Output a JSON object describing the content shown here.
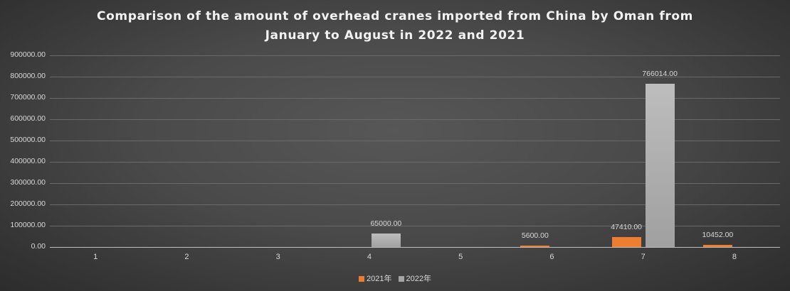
{
  "chart_data": {
    "type": "bar",
    "title": "Comparison of the amount of overhead cranes imported from China by Oman from January to August in 2022 and 2021",
    "title_lines": [
      "Comparison of the amount of overhead cranes imported from China by Oman from",
      "January to August in 2022 and 2021"
    ],
    "xlabel": "",
    "ylabel": "",
    "categories": [
      "1",
      "2",
      "3",
      "4",
      "5",
      "6",
      "7",
      "8"
    ],
    "series": [
      {
        "name": "2021年",
        "color": "#ed7d31",
        "values": [
          0,
          0,
          0,
          0,
          0,
          5600,
          47410,
          10452
        ]
      },
      {
        "name": "2022年",
        "color": "#a5a5a5",
        "values": [
          0,
          0,
          0,
          65000,
          0,
          0,
          766014,
          0
        ]
      }
    ],
    "data_labels": [
      {
        "category": "4",
        "series": "2022年",
        "text": "65000.00"
      },
      {
        "category": "6",
        "series": "2021年",
        "text": "5600.00"
      },
      {
        "category": "7",
        "series": "2021年",
        "text": "47410.00"
      },
      {
        "category": "7",
        "series": "2022年",
        "text": "766014.00"
      },
      {
        "category": "8",
        "series": "2021年",
        "text": "10452.00"
      }
    ],
    "ylim": [
      0,
      900000
    ],
    "yticks": [
      "0.00",
      "100000.00",
      "200000.00",
      "300000.00",
      "400000.00",
      "500000.00",
      "600000.00",
      "700000.00",
      "800000.00",
      "900000.00"
    ],
    "grid": true,
    "legend_position": "bottom"
  }
}
